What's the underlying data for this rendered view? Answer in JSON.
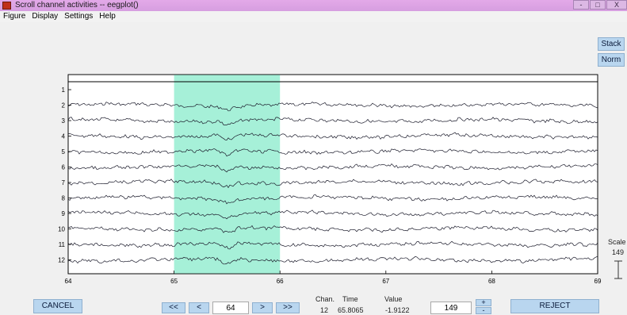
{
  "window": {
    "title": "Scroll channel activities -- eegplot()",
    "icon": "matlab-icon",
    "controls": [
      "-",
      "□",
      "X"
    ]
  },
  "menu": [
    "Figure",
    "Display",
    "Settings",
    "Help"
  ],
  "side_buttons": {
    "stack": "Stack",
    "norm": "Norm"
  },
  "scale": {
    "label": "Scale",
    "value": "149",
    "icon": "scale-bar-icon"
  },
  "nav": {
    "fast_back": "<<",
    "back": "<",
    "position": "64",
    "forward": ">",
    "fast_forward": ">>"
  },
  "readout": {
    "chan_label": "Chan.",
    "time_label": "Time",
    "value_label": "Value",
    "chan": "12",
    "time": "65.8065",
    "value": "-1.9122"
  },
  "spacing": {
    "value": "149",
    "plus": "+",
    "minus": "-"
  },
  "buttons": {
    "cancel": "CANCEL",
    "reject": "REJECT"
  },
  "chart_data": {
    "type": "line",
    "channels": [
      "1",
      "2",
      "3",
      "4",
      "5",
      "6",
      "7",
      "8",
      "9",
      "10",
      "11",
      "12"
    ],
    "x_ticks": [
      "64",
      "65",
      "66",
      "67",
      "68",
      "69"
    ],
    "xlim": [
      64,
      69
    ],
    "selected_region": [
      65.0,
      66.0
    ],
    "selection_color": "#a6f0d8",
    "trace_color": "#1a1a2a"
  }
}
